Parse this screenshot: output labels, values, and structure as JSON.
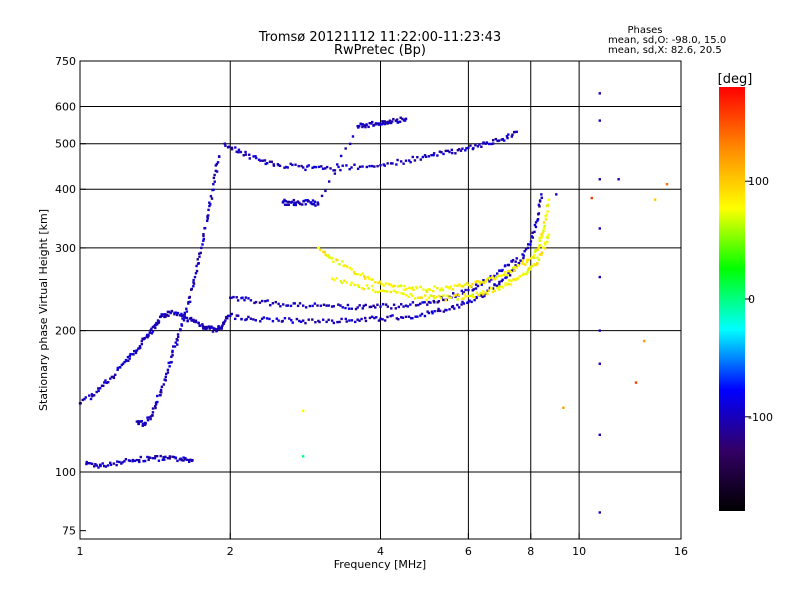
{
  "chart_data": {
    "type": "scatter",
    "title": "Tromsø 20121112 11:22:00-11:23:43",
    "subtitle": "RwPretec (Bp)",
    "xlabel": "Frequency [MHz]",
    "ylabel": "Stationary phase Virtual Height [km]",
    "x_scale": "log",
    "y_scale": "log",
    "xlim": [
      1,
      16
    ],
    "ylim": [
      72,
      750
    ],
    "x_ticks": [
      1,
      2,
      4,
      6,
      8,
      10,
      16
    ],
    "y_ticks": [
      75,
      100,
      200,
      300,
      400,
      500,
      600,
      750
    ],
    "x_grid": [
      2,
      4,
      6,
      8,
      10
    ],
    "y_grid": [
      100,
      200,
      300,
      400,
      500,
      600
    ],
    "grid": true,
    "stats": {
      "heading": "Phases",
      "line_o": "mean, sd,O: -98.0, 15.0",
      "line_x": "mean, sd,X:  82.6, 20.5"
    },
    "colorbar": {
      "label": "[deg]",
      "range": [
        -180,
        180
      ],
      "ticks": [
        100,
        0,
        -100
      ],
      "colors": [
        "#ff0000",
        "#ff8800",
        "#ffff00",
        "#00ff00",
        "#00ffff",
        "#0000ff",
        "#330066",
        "#000000"
      ]
    },
    "series": [
      {
        "kind": "o-low-band",
        "phase": -100,
        "x": [
          1.03,
          1.1,
          1.2,
          1.3,
          1.4,
          1.5,
          1.6,
          1.68
        ],
        "y": [
          104,
          103,
          105,
          106,
          107,
          107,
          106,
          106
        ]
      },
      {
        "kind": "o-trace-lower-layer",
        "phase": -100,
        "x": [
          1.0,
          1.08,
          1.15,
          1.22,
          1.28,
          1.33,
          1.38,
          1.42,
          1.46,
          1.52,
          1.6,
          1.68,
          1.76,
          1.82,
          1.88,
          1.93,
          1.98
        ],
        "y": [
          140,
          148,
          158,
          170,
          178,
          190,
          198,
          206,
          215,
          218,
          215,
          210,
          205,
          202,
          200,
          205,
          215
        ]
      },
      {
        "kind": "o-trace-spread",
        "phase": -100,
        "x": [
          1.3,
          1.35,
          1.4,
          1.45,
          1.5,
          1.55,
          1.6,
          1.65,
          1.7,
          1.75,
          1.8,
          1.85,
          1.9
        ],
        "y": [
          128,
          126,
          134,
          148,
          165,
          185,
          205,
          230,
          260,
          300,
          350,
          410,
          470
        ]
      },
      {
        "kind": "o-f2-upper",
        "phase": -100,
        "x": [
          1.95,
          2.1,
          2.3,
          2.5,
          2.8,
          3.1,
          3.5,
          4.0,
          4.5,
          5.0,
          5.5,
          6.0,
          6.5,
          7.0,
          7.5
        ],
        "y": [
          500,
          480,
          460,
          450,
          445,
          443,
          445,
          450,
          460,
          470,
          480,
          490,
          500,
          510,
          530
        ]
      },
      {
        "kind": "o-f1-lower",
        "phase": -100,
        "x": [
          2.0,
          2.2,
          2.5,
          2.8,
          3.2,
          3.6,
          4.0,
          4.5,
          5.0,
          5.5,
          6.0,
          6.5,
          7.0,
          7.5,
          7.9,
          8.2,
          8.4
        ],
        "y": [
          215,
          212,
          210,
          210,
          210,
          211,
          212,
          214,
          218,
          222,
          230,
          240,
          255,
          275,
          300,
          340,
          390
        ]
      },
      {
        "kind": "o-f1-mid",
        "phase": -100,
        "x": [
          2.0,
          2.2,
          2.5,
          2.8,
          3.2,
          3.6,
          4.0,
          4.5,
          5.0,
          5.5,
          6.0,
          6.5,
          7.0,
          7.5
        ],
        "y": [
          235,
          232,
          228,
          226,
          225,
          224,
          225,
          226,
          230,
          236,
          244,
          255,
          268,
          285
        ]
      },
      {
        "kind": "x-trace",
        "phase": 80,
        "x": [
          3.0,
          3.2,
          3.5,
          3.8,
          4.2,
          4.6,
          5.0,
          5.5,
          6.0,
          6.5,
          7.0,
          7.5,
          8.0,
          8.3,
          8.5,
          8.7
        ],
        "y": [
          300,
          285,
          270,
          258,
          250,
          246,
          245,
          246,
          250,
          255,
          262,
          272,
          285,
          300,
          330,
          380
        ]
      },
      {
        "kind": "x-trace-lower",
        "phase": 80,
        "x": [
          3.2,
          3.6,
          4.0,
          4.5,
          5.0,
          5.5,
          6.0,
          6.5,
          7.0,
          7.5,
          8.0,
          8.4,
          8.7
        ],
        "y": [
          258,
          250,
          243,
          238,
          235,
          235,
          237,
          241,
          248,
          258,
          270,
          290,
          320
        ]
      },
      {
        "kind": "o-sporadic-high",
        "phase": -100,
        "x": [
          2.55,
          2.65,
          2.75,
          2.9,
          3.0,
          3.6,
          3.75,
          3.95,
          4.1,
          4.3,
          4.5
        ],
        "y": [
          375,
          375,
          374,
          375,
          372,
          545,
          548,
          552,
          555,
          560,
          565
        ]
      },
      {
        "kind": "o-column-11",
        "phase": -100,
        "x": [
          11.0,
          11.0,
          11.0,
          11.0,
          11.0,
          11.0,
          11.0,
          11.0
        ],
        "y": [
          640,
          560,
          420,
          330,
          260,
          200,
          170,
          120
        ]
      },
      {
        "kind": "scattered-mixed",
        "phase": 0,
        "x": [
          2.8,
          2.8,
          9.0,
          9.3,
          10.6,
          11.0,
          12.0,
          13.0,
          13.5,
          14.2,
          15.0
        ],
        "y": [
          135,
          108,
          390,
          137,
          383,
          82,
          420,
          155,
          190,
          380,
          410
        ]
      }
    ]
  }
}
